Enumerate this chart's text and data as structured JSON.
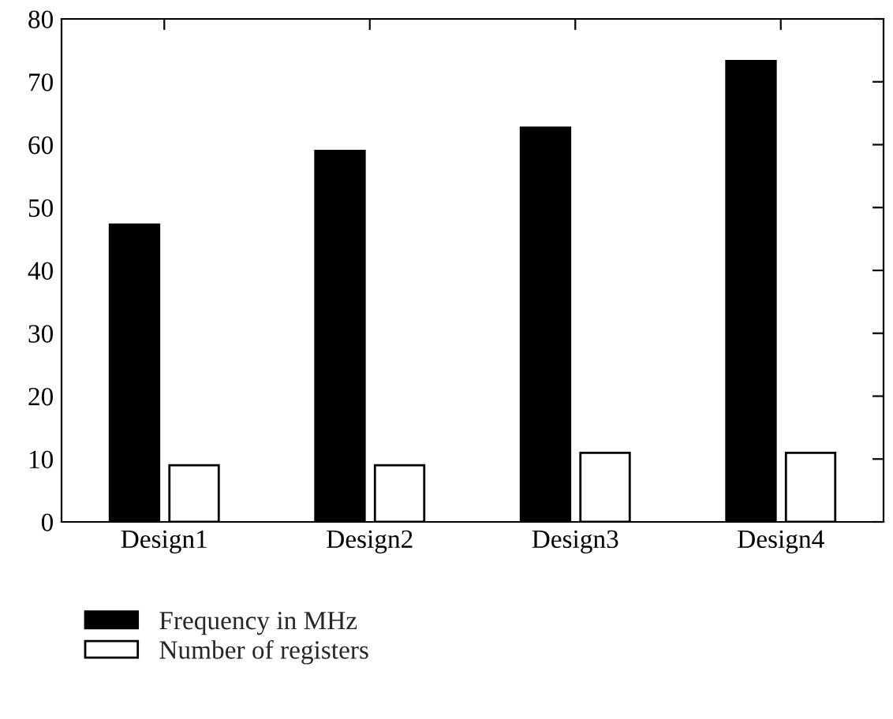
{
  "chart_data": {
    "type": "bar",
    "categories": [
      "Design1",
      "Design2",
      "Design3",
      "Design4"
    ],
    "series": [
      {
        "name": "Frequency in MHz",
        "color": "#000000",
        "values": [
          47.3,
          59,
          62.7,
          73.3
        ]
      },
      {
        "name": "Number of registers",
        "color": "#ffffff",
        "values": [
          9,
          9,
          11,
          11
        ]
      }
    ],
    "ylim": [
      0,
      80
    ],
    "yticks": [
      0,
      10,
      20,
      30,
      40,
      50,
      60,
      70,
      80
    ],
    "grid": false,
    "legend": "bottom"
  }
}
